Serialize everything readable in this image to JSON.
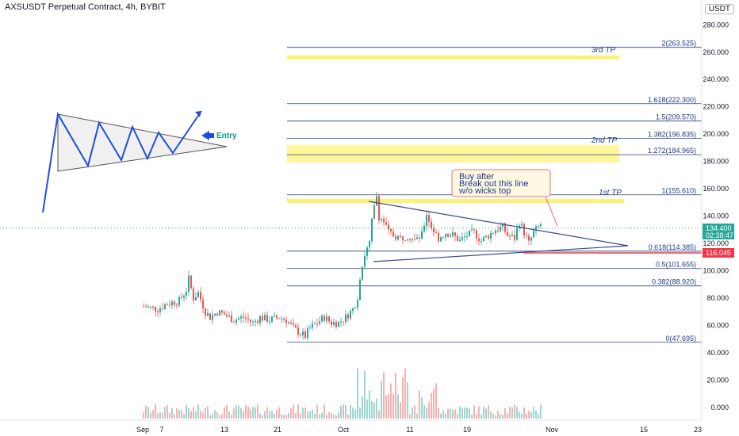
{
  "header": {
    "title": "AXSUSDT Perpetual Contract, 4h, BYBIT",
    "currency": "USDT"
  },
  "colors": {
    "accent_blue": "#1e3a8a",
    "level_line": "#2a3f7a",
    "tp_zone": "#fff176",
    "up": "#26a69a",
    "down": "#ef5350",
    "price_tag": "#26a69a",
    "stop_tag": "#f23645",
    "entry_text": "#089981"
  },
  "chart_data": {
    "type": "candlestick",
    "y_axis": {
      "ticks": [
        "280.000",
        "260.000",
        "240.000",
        "220.000",
        "200.000",
        "180.000",
        "160.000",
        "140.000",
        "120.000",
        "100.000",
        "80.000",
        "60.000",
        "40.000",
        "20.000",
        "0.000"
      ],
      "range": [
        -5,
        293
      ]
    },
    "x_axis": {
      "ticks": [
        "Sep",
        "7",
        "13",
        "21",
        "Oct",
        "11",
        "19",
        "Nov",
        "15",
        "23"
      ]
    },
    "price_tag": {
      "value": "134.400",
      "countdown": "02:38:47"
    },
    "stop_tag": {
      "value": "116.045"
    },
    "fib_levels": [
      {
        "label": "2(263.525)",
        "value": 263.525
      },
      {
        "label": "1.618(222.300)",
        "value": 222.3
      },
      {
        "label": "1.5(209.570)",
        "value": 209.57
      },
      {
        "label": "1.382(196.835)",
        "value": 196.835
      },
      {
        "label": "1.272(184.965)",
        "value": 184.965
      },
      {
        "label": "1(155.610)",
        "value": 155.61
      },
      {
        "label": "0.618(114.385)",
        "value": 114.385
      },
      {
        "label": "0.5(101.655)",
        "value": 101.655
      },
      {
        "label": "0.382(88.920)",
        "value": 88.92
      },
      {
        "label": "0(47.695)",
        "value": 47.695
      }
    ],
    "tp_labels": [
      "3rd TP",
      "2nd TP",
      "1st TP"
    ],
    "annotation": [
      "Buy after",
      "Break out this line",
      "w/o wicks top"
    ],
    "entry_label": "Entry",
    "price_path": [
      [
        0,
        74
      ],
      [
        6,
        72
      ],
      [
        10,
        76
      ],
      [
        15,
        78
      ],
      [
        18,
        86
      ],
      [
        19,
        94
      ],
      [
        21,
        80
      ],
      [
        23,
        84
      ],
      [
        26,
        70
      ],
      [
        28,
        66
      ],
      [
        31,
        70
      ],
      [
        34,
        68
      ],
      [
        38,
        64
      ],
      [
        42,
        66
      ],
      [
        46,
        62
      ],
      [
        49,
        66
      ],
      [
        53,
        64
      ],
      [
        57,
        66
      ],
      [
        60,
        64
      ],
      [
        63,
        58
      ],
      [
        66,
        54
      ],
      [
        68,
        52
      ],
      [
        70,
        58
      ],
      [
        73,
        62
      ],
      [
        76,
        66
      ],
      [
        79,
        62
      ],
      [
        82,
        62
      ],
      [
        85,
        66
      ],
      [
        88,
        72
      ],
      [
        90,
        80
      ],
      [
        91,
        96
      ],
      [
        92,
        104
      ],
      [
        93,
        112
      ],
      [
        95,
        120
      ],
      [
        96,
        136
      ],
      [
        97,
        146
      ],
      [
        98,
        155
      ],
      [
        99,
        140
      ],
      [
        101,
        136
      ],
      [
        103,
        128
      ],
      [
        105,
        126
      ],
      [
        108,
        124
      ],
      [
        111,
        126
      ],
      [
        114,
        122
      ],
      [
        117,
        126
      ],
      [
        119,
        142
      ],
      [
        121,
        132
      ],
      [
        124,
        124
      ],
      [
        127,
        128
      ],
      [
        130,
        126
      ],
      [
        133,
        122
      ],
      [
        136,
        126
      ],
      [
        139,
        128
      ],
      [
        142,
        122
      ],
      [
        145,
        126
      ],
      [
        148,
        130
      ],
      [
        151,
        132
      ],
      [
        153,
        126
      ],
      [
        156,
        124
      ],
      [
        158,
        136
      ],
      [
        160,
        128
      ],
      [
        162,
        120
      ],
      [
        164,
        128
      ],
      [
        167,
        134
      ]
    ]
  }
}
